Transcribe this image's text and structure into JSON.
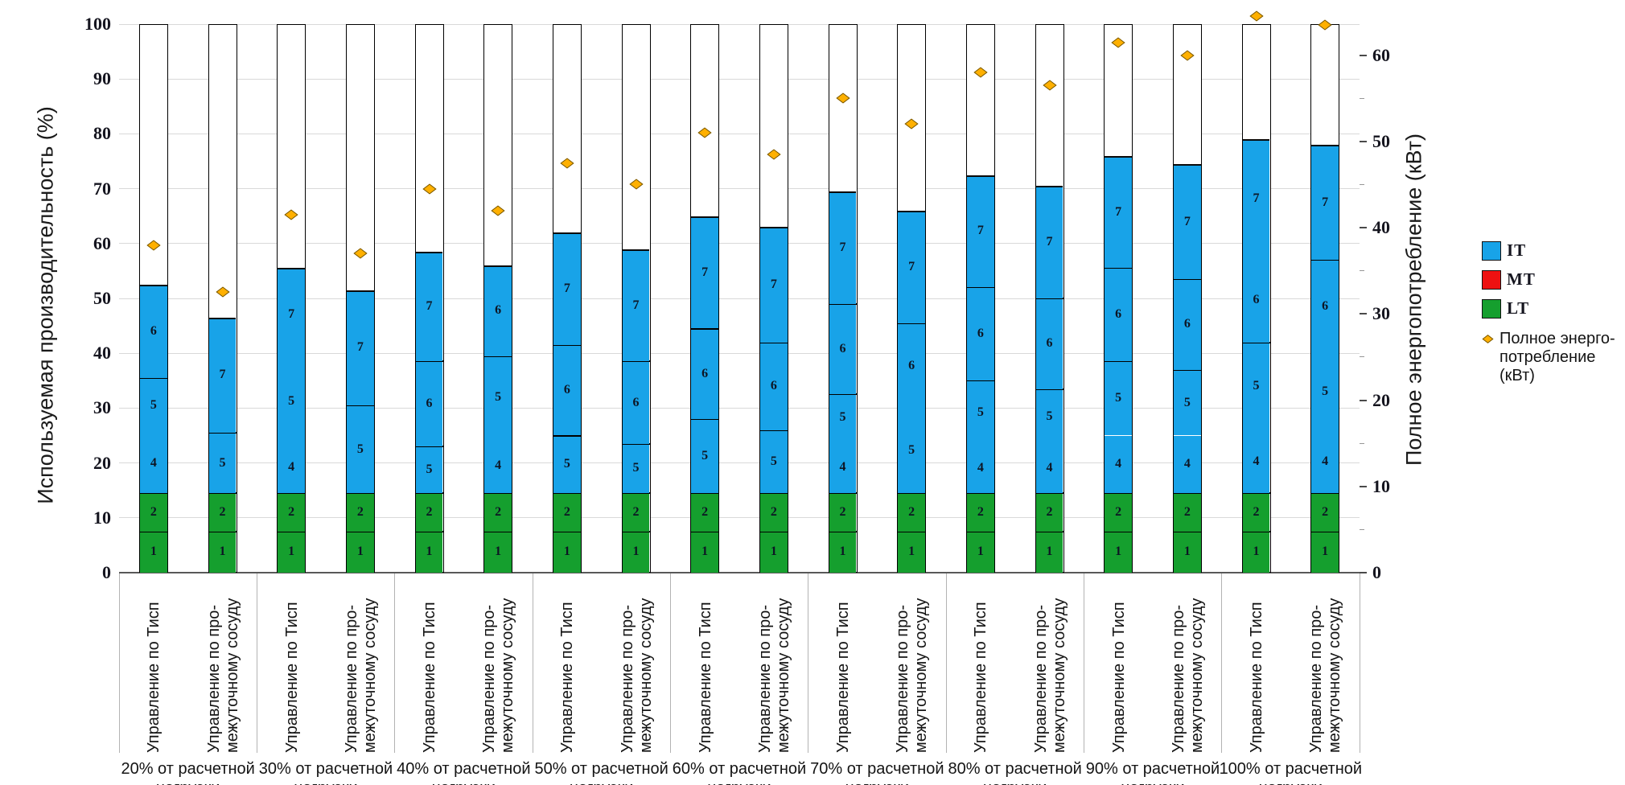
{
  "chart_data": {
    "type": "stacked-bar-with-scatter",
    "y_left": {
      "title": "Используемая производительность (%)",
      "min": 0,
      "max": 100,
      "tick_step": 10,
      "ticks": [
        0,
        10,
        20,
        30,
        40,
        50,
        60,
        70,
        80,
        90,
        100
      ]
    },
    "y_right": {
      "title": "Полное энергопотребление (кВт)",
      "min": 0,
      "tick_step": 10,
      "ticks": [
        0,
        10,
        20,
        30,
        40,
        50,
        60
      ],
      "value_at_chart_top": 63.6
    },
    "x_label_variants": {
      "tisp": [
        "Управление по Тисп"
      ],
      "vessel": [
        "Управление по про-",
        "межуточному сосуду"
      ]
    },
    "legend": {
      "series": [
        {
          "code": "IT",
          "color": "#18a3e8"
        },
        {
          "code": "MT",
          "color": "#ee1111"
        },
        {
          "code": "LT",
          "color": "#159f2e"
        }
      ],
      "scatter": {
        "label_lines": [
          "Полное энерго-",
          "потребление",
          "(кВт)"
        ],
        "color": "#ffb000"
      }
    },
    "colors": {
      "IT": "#18a3e8",
      "MT": "#ee1111",
      "LT": "#159f2e",
      "diamond_fill": "#ffb000",
      "diamond_border": "#6f5200",
      "grid": "#d9d9d9",
      "axis_line": "#595959",
      "separator": "#b3b3b3",
      "bar_outline": "#000000"
    },
    "groups": [
      {
        "label_lines": [
          "20% от расчетной",
          "нагрузки"
        ],
        "bars": [
          {
            "control": "tisp",
            "power_kw": 38,
            "segments": [
              {
                "unit": "1",
                "tier": "LT",
                "to": 7.5,
                "line": true
              },
              {
                "unit": "2",
                "tier": "LT",
                "to": 14.5,
                "line": true
              },
              {
                "unit": "4",
                "tier": "IT",
                "to": 25.5,
                "line": false
              },
              {
                "unit": "5",
                "tier": "IT",
                "to": 35.5,
                "line": true
              },
              {
                "unit": "6",
                "tier": "IT",
                "to": 52.5,
                "line": false
              }
            ]
          },
          {
            "control": "vessel",
            "power_kw": 32.5,
            "segments": [
              {
                "unit": "1",
                "tier": "LT",
                "to": 7.5,
                "line": true
              },
              {
                "unit": "2",
                "tier": "LT",
                "to": 14.5,
                "line": true
              },
              {
                "unit": "5",
                "tier": "IT",
                "to": 25.5,
                "line": true
              },
              {
                "unit": "7",
                "tier": "IT",
                "to": 46.5,
                "line": false
              }
            ]
          }
        ]
      },
      {
        "label_lines": [
          "30% от расчетной",
          "нагрузки"
        ],
        "bars": [
          {
            "control": "tisp",
            "power_kw": 41.5,
            "segments": [
              {
                "unit": "1",
                "tier": "LT",
                "to": 7.5,
                "line": true
              },
              {
                "unit": "2",
                "tier": "LT",
                "to": 14.5,
                "line": true
              },
              {
                "unit": "4",
                "tier": "IT",
                "to": 24,
                "line": false
              },
              {
                "unit": "5",
                "tier": "IT",
                "to": 38.5,
                "line": false
              },
              {
                "unit": "7",
                "tier": "IT",
                "to": 55.5,
                "line": false
              }
            ]
          },
          {
            "control": "vessel",
            "power_kw": 37,
            "segments": [
              {
                "unit": "1",
                "tier": "LT",
                "to": 7.5,
                "line": true
              },
              {
                "unit": "2",
                "tier": "LT",
                "to": 14.5,
                "line": true
              },
              {
                "unit": "5",
                "tier": "IT",
                "to": 30.5,
                "line": true
              },
              {
                "unit": "7",
                "tier": "IT",
                "to": 51.5,
                "line": false
              }
            ]
          }
        ]
      },
      {
        "label_lines": [
          "40% от расчетной",
          "нагрузки"
        ],
        "bars": [
          {
            "control": "tisp",
            "power_kw": 44.5,
            "segments": [
              {
                "unit": "1",
                "tier": "LT",
                "to": 7.5,
                "line": true
              },
              {
                "unit": "2",
                "tier": "LT",
                "to": 14.5,
                "line": true
              },
              {
                "unit": "5",
                "tier": "IT",
                "to": 23,
                "line": true
              },
              {
                "unit": "6",
                "tier": "IT",
                "to": 38.5,
                "line": true
              },
              {
                "unit": "7",
                "tier": "IT",
                "to": 58.5,
                "line": false
              }
            ]
          },
          {
            "control": "vessel",
            "power_kw": 42,
            "segments": [
              {
                "unit": "1",
                "tier": "LT",
                "to": 7.5,
                "line": true
              },
              {
                "unit": "2",
                "tier": "LT",
                "to": 14.5,
                "line": true
              },
              {
                "unit": "4",
                "tier": "IT",
                "to": 24.5,
                "line": false
              },
              {
                "unit": "5",
                "tier": "IT",
                "to": 39.5,
                "line": true
              },
              {
                "unit": "6",
                "tier": "IT",
                "to": 56,
                "line": false
              }
            ]
          }
        ]
      },
      {
        "label_lines": [
          "50% от расчетной",
          "нагрузки"
        ],
        "bars": [
          {
            "control": "tisp",
            "power_kw": 47.5,
            "segments": [
              {
                "unit": "1",
                "tier": "LT",
                "to": 7.5,
                "line": true
              },
              {
                "unit": "2",
                "tier": "LT",
                "to": 14.5,
                "line": true
              },
              {
                "unit": "5",
                "tier": "IT",
                "to": 25,
                "line": true
              },
              {
                "unit": "6",
                "tier": "IT",
                "to": 41.5,
                "line": true
              },
              {
                "unit": "7",
                "tier": "IT",
                "to": 62,
                "line": false
              }
            ]
          },
          {
            "control": "vessel",
            "power_kw": 45,
            "segments": [
              {
                "unit": "1",
                "tier": "LT",
                "to": 7.5,
                "line": true
              },
              {
                "unit": "2",
                "tier": "LT",
                "to": 14.5,
                "line": true
              },
              {
                "unit": "5",
                "tier": "IT",
                "to": 23.5,
                "line": true
              },
              {
                "unit": "6",
                "tier": "IT",
                "to": 38.5,
                "line": true
              },
              {
                "unit": "7",
                "tier": "IT",
                "to": 59,
                "line": false
              }
            ]
          }
        ]
      },
      {
        "label_lines": [
          "60% от расчетной",
          "нагрузки"
        ],
        "bars": [
          {
            "control": "tisp",
            "power_kw": 51,
            "segments": [
              {
                "unit": "1",
                "tier": "LT",
                "to": 7.5,
                "line": true
              },
              {
                "unit": "2",
                "tier": "LT",
                "to": 14.5,
                "line": true
              },
              {
                "unit": "5",
                "tier": "IT",
                "to": 28,
                "line": true
              },
              {
                "unit": "6",
                "tier": "IT",
                "to": 44.5,
                "line": true
              },
              {
                "unit": "7",
                "tier": "IT",
                "to": 65,
                "line": false
              }
            ]
          },
          {
            "control": "vessel",
            "power_kw": 48.5,
            "segments": [
              {
                "unit": "1",
                "tier": "LT",
                "to": 7.5,
                "line": true
              },
              {
                "unit": "2",
                "tier": "LT",
                "to": 14.5,
                "line": true
              },
              {
                "unit": "5",
                "tier": "IT",
                "to": 26,
                "line": true
              },
              {
                "unit": "6",
                "tier": "IT",
                "to": 42,
                "line": true
              },
              {
                "unit": "7",
                "tier": "IT",
                "to": 63,
                "line": false
              }
            ]
          }
        ]
      },
      {
        "label_lines": [
          "70% от расчетной",
          "нагрузки"
        ],
        "bars": [
          {
            "control": "tisp",
            "power_kw": 55,
            "segments": [
              {
                "unit": "1",
                "tier": "LT",
                "to": 7.5,
                "line": true
              },
              {
                "unit": "2",
                "tier": "LT",
                "to": 14.5,
                "line": true
              },
              {
                "unit": "4",
                "tier": "IT",
                "to": 24,
                "line": false
              },
              {
                "unit": "5",
                "tier": "IT",
                "to": 32.5,
                "line": true
              },
              {
                "unit": "6",
                "tier": "IT",
                "to": 49,
                "line": true
              },
              {
                "unit": "7",
                "tier": "IT",
                "to": 69.5,
                "line": false
              }
            ]
          },
          {
            "control": "vessel",
            "power_kw": 52,
            "segments": [
              {
                "unit": "1",
                "tier": "LT",
                "to": 7.5,
                "line": true
              },
              {
                "unit": "2",
                "tier": "LT",
                "to": 14.5,
                "line": true
              },
              {
                "unit": "5",
                "tier": "IT",
                "to": 30,
                "line": false
              },
              {
                "unit": "6",
                "tier": "IT",
                "to": 45.5,
                "line": true
              },
              {
                "unit": "7",
                "tier": "IT",
                "to": 66,
                "line": false
              }
            ]
          }
        ]
      },
      {
        "label_lines": [
          "80% от расчетной",
          "нагрузки"
        ],
        "bars": [
          {
            "control": "tisp",
            "power_kw": 58,
            "segments": [
              {
                "unit": "1",
                "tier": "LT",
                "to": 7.5,
                "line": true
              },
              {
                "unit": "2",
                "tier": "LT",
                "to": 14.5,
                "line": true
              },
              {
                "unit": "4",
                "tier": "IT",
                "to": 23.5,
                "line": false
              },
              {
                "unit": "5",
                "tier": "IT",
                "to": 35,
                "line": true
              },
              {
                "unit": "6",
                "tier": "IT",
                "to": 52,
                "line": true
              },
              {
                "unit": "7",
                "tier": "IT",
                "to": 72.5,
                "line": false
              }
            ]
          },
          {
            "control": "vessel",
            "power_kw": 56.5,
            "segments": [
              {
                "unit": "1",
                "tier": "LT",
                "to": 7.5,
                "line": true
              },
              {
                "unit": "2",
                "tier": "LT",
                "to": 14.5,
                "line": true
              },
              {
                "unit": "4",
                "tier": "IT",
                "to": 23.5,
                "line": false
              },
              {
                "unit": "5",
                "tier": "IT",
                "to": 33.5,
                "line": true
              },
              {
                "unit": "6",
                "tier": "IT",
                "to": 50,
                "line": true
              },
              {
                "unit": "7",
                "tier": "IT",
                "to": 70.5,
                "line": false
              }
            ]
          }
        ]
      },
      {
        "label_lines": [
          "90% от расчетной",
          "нагрузки"
        ],
        "bars": [
          {
            "control": "tisp",
            "power_kw": 61.5,
            "segments": [
              {
                "unit": "1",
                "tier": "LT",
                "to": 7.5,
                "line": true
              },
              {
                "unit": "2",
                "tier": "LT",
                "to": 14.5,
                "line": true
              },
              {
                "unit": "4",
                "tier": "IT",
                "to": 25,
                "line": false
              },
              {
                "unit": "5",
                "tier": "IT",
                "to": 38.5,
                "line": true
              },
              {
                "unit": "6",
                "tier": "IT",
                "to": 55.5,
                "line": true
              },
              {
                "unit": "7",
                "tier": "IT",
                "to": 76,
                "line": false
              }
            ]
          },
          {
            "control": "vessel",
            "power_kw": 60,
            "segments": [
              {
                "unit": "1",
                "tier": "LT",
                "to": 7.5,
                "line": true
              },
              {
                "unit": "2",
                "tier": "LT",
                "to": 14.5,
                "line": true
              },
              {
                "unit": "4",
                "tier": "IT",
                "to": 25,
                "line": false
              },
              {
                "unit": "5",
                "tier": "IT",
                "to": 37,
                "line": true
              },
              {
                "unit": "6",
                "tier": "IT",
                "to": 53.5,
                "line": true
              },
              {
                "unit": "7",
                "tier": "IT",
                "to": 74.5,
                "line": false
              }
            ]
          }
        ]
      },
      {
        "label_lines": [
          "100% от расчетной",
          "нагрузки"
        ],
        "bars": [
          {
            "control": "tisp",
            "power_kw": 64.5,
            "segments": [
              {
                "unit": "1",
                "tier": "LT",
                "to": 7.5,
                "line": true
              },
              {
                "unit": "2",
                "tier": "LT",
                "to": 14.5,
                "line": true
              },
              {
                "unit": "4",
                "tier": "IT",
                "to": 26,
                "line": false
              },
              {
                "unit": "5",
                "tier": "IT",
                "to": 42,
                "line": true
              },
              {
                "unit": "6",
                "tier": "IT",
                "to": 57.5,
                "line": false
              },
              {
                "unit": "7",
                "tier": "IT",
                "to": 79,
                "line": false
              }
            ]
          },
          {
            "control": "vessel",
            "power_kw": 63.5,
            "segments": [
              {
                "unit": "1",
                "tier": "LT",
                "to": 7.5,
                "line": true
              },
              {
                "unit": "2",
                "tier": "LT",
                "to": 14.5,
                "line": true
              },
              {
                "unit": "4",
                "tier": "IT",
                "to": 26,
                "line": false
              },
              {
                "unit": "5",
                "tier": "IT",
                "to": 40,
                "line": false
              },
              {
                "unit": "6",
                "tier": "IT",
                "to": 57,
                "line": true
              },
              {
                "unit": "7",
                "tier": "IT",
                "to": 78,
                "line": false
              }
            ]
          }
        ]
      }
    ]
  }
}
